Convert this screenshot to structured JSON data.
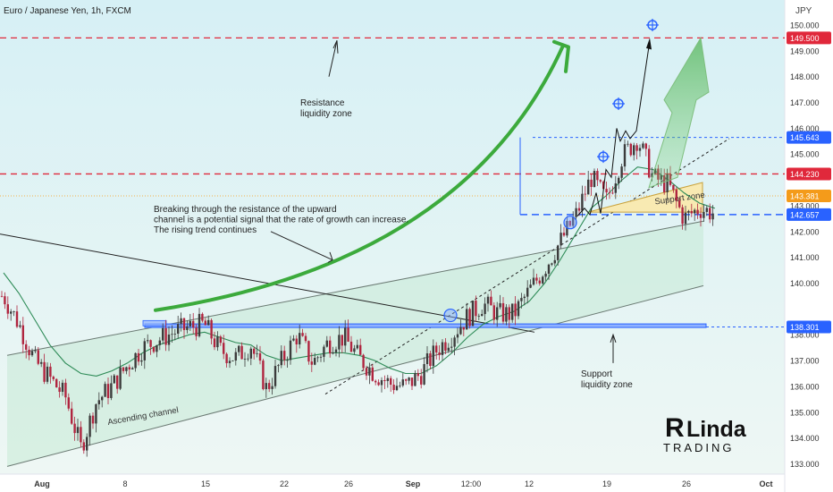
{
  "symbol_title": "Euro / Japanese Yen, 1h, FXCM",
  "currency": "JPY",
  "colors": {
    "bg_top": "#d6f0f5",
    "bg_bottom": "#eef7f4",
    "up_candle": "#3c3c3c",
    "down_candle": "#b0253f",
    "ma": "#2e8b57",
    "red_level": "#e0283b",
    "blue_level": "#2962ff",
    "channel_fill": "#bfe6cf",
    "arrow_green": "#3caa3c",
    "support_zone": "#f8eab2",
    "label_red": "#e0283b",
    "label_orange": "#f49b1a",
    "label_blue": "#2962ff"
  },
  "chart_data": {
    "type": "line",
    "title": "Euro / Japanese Yen, 1h, FXCM",
    "xlabel": "",
    "ylabel": "JPY",
    "ylim": [
      132.6,
      150.9
    ],
    "x_tick_labels": [
      "Aug",
      "8",
      "15",
      "22",
      "26",
      "Sep",
      "12:00",
      "12",
      "19",
      "26",
      "Oct"
    ],
    "y_tick_labels": [
      150.0,
      149.0,
      148.0,
      147.0,
      146.0,
      145.0,
      143.0,
      142.0,
      141.0,
      140.0,
      138.0,
      137.0,
      136.0,
      135.0,
      134.0,
      133.0
    ],
    "price_series": {
      "name": "",
      "x_day": [
        0,
        1,
        2,
        3,
        4,
        5,
        6,
        7,
        8,
        9,
        10,
        11,
        12,
        13,
        14,
        15,
        16,
        17,
        18,
        19,
        20,
        21,
        22,
        23,
        24,
        25,
        26,
        27,
        28,
        29,
        30,
        31,
        32,
        33,
        34,
        35,
        36,
        37,
        38,
        39,
        40,
        41,
        42,
        43,
        44,
        45,
        46
      ],
      "y": [
        139.5,
        138.4,
        137.0,
        136.3,
        135.6,
        133.6,
        135.4,
        136.0,
        136.8,
        137.5,
        137.8,
        138.1,
        138.3,
        138.4,
        137.4,
        137.1,
        137.6,
        135.9,
        137.0,
        138.0,
        136.9,
        137.7,
        137.9,
        137.1,
        136.5,
        136.1,
        136.0,
        136.5,
        137.4,
        138.0,
        138.7,
        139.2,
        138.8,
        138.8,
        139.7,
        140.6,
        141.6,
        142.6,
        144.1,
        143.2,
        144.9,
        145.6,
        144.1,
        143.8,
        142.5,
        142.9,
        142.7
      ]
    },
    "levels": [
      {
        "value": 149.5,
        "label": "149.500",
        "style": "red-dashed"
      },
      {
        "value": 144.23,
        "label": "144.230",
        "style": "red-dashed"
      },
      {
        "value": 145.643,
        "label": "145.643",
        "style": "blue-dotted"
      },
      {
        "value": 143.381,
        "label": "143.381",
        "style": "orange-dotted"
      },
      {
        "value": 142.657,
        "label": "142.657",
        "style": "blue-dashed"
      },
      {
        "value": 138.301,
        "label": "138.301",
        "style": "blue-zone"
      }
    ],
    "grid": false,
    "legend": "none"
  },
  "annotations": {
    "resistance_zone": "Resistance\nliquidity zone",
    "breakout_note": "Breaking through the resistance of the upward\nchannel is a potential signal that the rate of growth can increase.\nThe rising trend continues",
    "support_zone_label": "Support zone",
    "support_liquidity": "Support\nliquidity zone",
    "ascending_channel": "Ascending channel"
  },
  "logo": {
    "text_top": "Linda",
    "text_bottom": "TRADING",
    "initial": "R"
  }
}
